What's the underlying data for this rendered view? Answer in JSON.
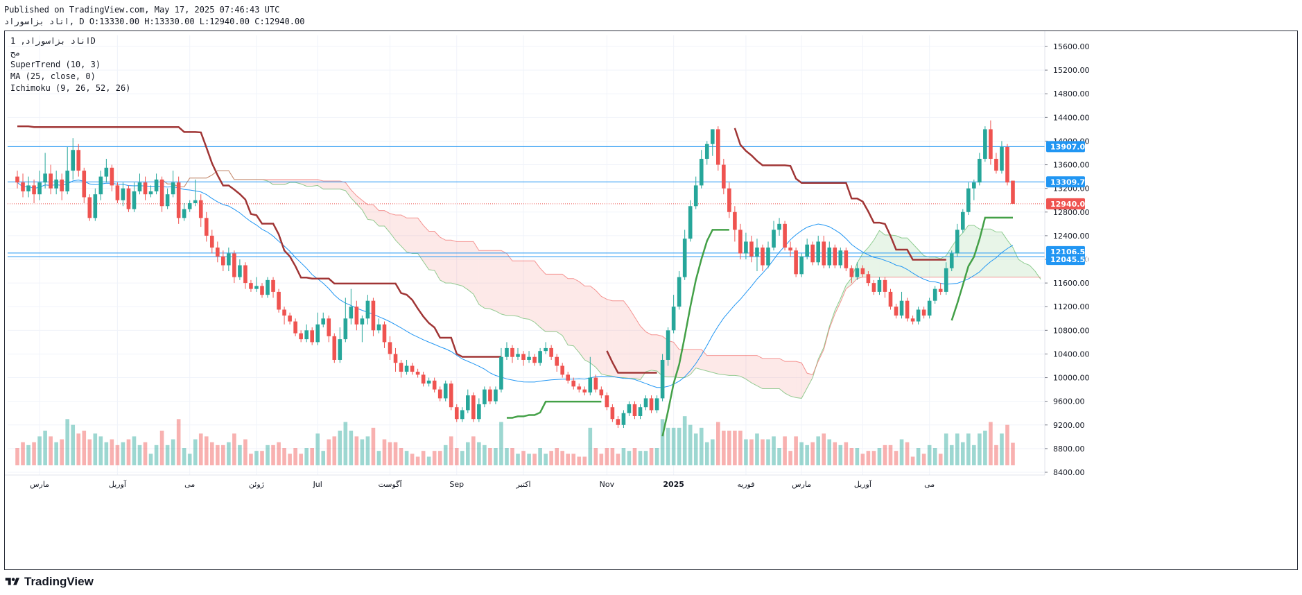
{
  "header": {
    "published": "Published on TradingView.com, May 17, 2025 07:46:43 UTC",
    "ohlc": "اناد بزاسوراد, D O:13330.00 H:13330.00 L:12940.00 C:12940.00"
  },
  "legend": {
    "symbol": "اناد بزاسوراد, 1D",
    "line2": "مح",
    "supertrend": "SuperTrend (10, 3)",
    "ma": "MA (25, close, 0)",
    "ichimoku": "Ichimoku (9, 26, 52, 26)"
  },
  "brand": {
    "name": "TradingView"
  },
  "colors": {
    "up": "#26a69a",
    "down": "#ef5350",
    "supertrend_up": "#43a047",
    "supertrend_down": "#a03535",
    "ma": "#2196f3",
    "hline": "#2196f3",
    "last_price": "#ef5350",
    "cloud_bear": "#ef5350",
    "cloud_bull": "#4caf50"
  },
  "chart_data": {
    "type": "candlestick",
    "y_axis": {
      "min": 8400,
      "max": 15600,
      "position": "right",
      "ticks": [
        "15600.00",
        "15200.00",
        "14800.00",
        "14400.00",
        "14000.00",
        "13600.00",
        "13200.00",
        "12800.00",
        "12400.00",
        "12000.00",
        "11600.00",
        "11200.00",
        "10800.00",
        "10400.00",
        "10000.00",
        "9600.00",
        "9200.00",
        "8800.00",
        "8400.00"
      ]
    },
    "x_axis": {
      "labels": [
        {
          "text": "مارس",
          "index": 4
        },
        {
          "text": "آوریل",
          "index": 18
        },
        {
          "text": "می",
          "index": 31
        },
        {
          "text": "ژوئن",
          "index": 43
        },
        {
          "text": "Jul",
          "index": 54
        },
        {
          "text": "آگوست",
          "index": 67
        },
        {
          "text": "Sep",
          "index": 79
        },
        {
          "text": "اکتبر",
          "index": 91
        },
        {
          "text": "Nov",
          "index": 106
        },
        {
          "text": "2025",
          "index": 118
        },
        {
          "text": "فوریه",
          "index": 131
        },
        {
          "text": "مارس",
          "index": 141
        },
        {
          "text": "آوریل",
          "index": 152
        },
        {
          "text": "می",
          "index": 164
        }
      ]
    },
    "candles": [
      [
        13400,
        13300,
        13500,
        13200
      ],
      [
        13300,
        13150,
        13450,
        13050
      ],
      [
        13150,
        13250,
        13400,
        13050
      ],
      [
        13250,
        13100,
        13350,
        12950
      ],
      [
        13100,
        13300,
        13500,
        13000
      ],
      [
        13300,
        13450,
        13800,
        13200
      ],
      [
        13450,
        13200,
        13600,
        13100
      ],
      [
        13200,
        13350,
        13500,
        13100
      ],
      [
        13350,
        13150,
        13450,
        13000
      ],
      [
        13150,
        13500,
        13900,
        13100
      ],
      [
        13500,
        13850,
        14050,
        13350
      ],
      [
        13850,
        13500,
        13950,
        13400
      ],
      [
        13500,
        13050,
        13550,
        12950
      ],
      [
        13050,
        12700,
        13100,
        12650
      ],
      [
        12700,
        13100,
        13200,
        12650
      ],
      [
        13100,
        13400,
        13500,
        13000
      ],
      [
        13400,
        13550,
        13700,
        13300
      ],
      [
        13550,
        13250,
        13600,
        13150
      ],
      [
        13250,
        13000,
        13300,
        12950
      ],
      [
        13000,
        13200,
        13300,
        12900
      ],
      [
        13200,
        12850,
        13250,
        12800
      ],
      [
        12850,
        13150,
        13300,
        12800
      ],
      [
        13150,
        13300,
        13450,
        13100
      ],
      [
        13300,
        13100,
        13400,
        13000
      ],
      [
        13100,
        13150,
        13250,
        13050
      ],
      [
        13150,
        13350,
        13450,
        13100
      ],
      [
        13350,
        12900,
        13400,
        12800
      ],
      [
        12900,
        13100,
        13200,
        12850
      ],
      [
        13100,
        13300,
        13500,
        13050
      ],
      [
        13300,
        12700,
        13400,
        12600
      ],
      [
        12700,
        12850,
        12950,
        12650
      ],
      [
        12850,
        12950,
        13000,
        12800
      ],
      [
        12950,
        13000,
        13350,
        12900
      ],
      [
        13000,
        12700,
        13100,
        12550
      ],
      [
        12700,
        12400,
        12800,
        12300
      ],
      [
        12400,
        12200,
        12500,
        12100
      ],
      [
        12200,
        12050,
        12300,
        11950
      ],
      [
        12050,
        11900,
        12150,
        11800
      ],
      [
        11900,
        12100,
        12200,
        11800
      ],
      [
        12100,
        11700,
        12150,
        11600
      ],
      [
        11700,
        11900,
        12000,
        11650
      ],
      [
        11900,
        11600,
        11950,
        11500
      ],
      [
        11600,
        11500,
        11650,
        11450
      ],
      [
        11500,
        11550,
        11700,
        11450
      ],
      [
        11550,
        11400,
        11600,
        11350
      ],
      [
        11400,
        11650,
        11700,
        11350
      ],
      [
        11650,
        11450,
        11700,
        11350
      ],
      [
        11450,
        11150,
        11500,
        11100
      ],
      [
        11150,
        11050,
        11200,
        10900
      ],
      [
        11050,
        10950,
        11100,
        10900
      ],
      [
        10950,
        10750,
        11000,
        10700
      ],
      [
        10750,
        10650,
        10800,
        10600
      ],
      [
        10650,
        10800,
        10900,
        10600
      ],
      [
        10800,
        10600,
        10850,
        10550
      ],
      [
        10600,
        10900,
        11100,
        10550
      ],
      [
        10900,
        11000,
        11100,
        10850
      ],
      [
        11000,
        10700,
        11050,
        10600
      ],
      [
        10700,
        10300,
        10750,
        10250
      ],
      [
        10300,
        10650,
        10850,
        10250
      ],
      [
        10650,
        11000,
        11350,
        10600
      ],
      [
        11000,
        11200,
        11500,
        10900
      ],
      [
        11200,
        10900,
        11300,
        10800
      ],
      [
        10900,
        11000,
        11050,
        10600
      ],
      [
        11000,
        11300,
        11400,
        10900
      ],
      [
        11300,
        10800,
        11350,
        10700
      ],
      [
        10800,
        10900,
        11000,
        10750
      ],
      [
        10900,
        10600,
        10950,
        10500
      ],
      [
        10600,
        10400,
        10700,
        10300
      ],
      [
        10400,
        10250,
        10500,
        10100
      ],
      [
        10250,
        10100,
        10300,
        10000
      ],
      [
        10100,
        10200,
        10300,
        10050
      ],
      [
        10200,
        10100,
        10250,
        10050
      ],
      [
        10100,
        10050,
        10150,
        10000
      ],
      [
        10050,
        9900,
        10100,
        9850
      ],
      [
        9900,
        9950,
        10000,
        9850
      ],
      [
        9950,
        9800,
        10000,
        9750
      ],
      [
        9800,
        9650,
        9850,
        9600
      ],
      [
        9650,
        9900,
        9950,
        9600
      ],
      [
        9900,
        9500,
        9950,
        9450
      ],
      [
        9500,
        9300,
        9550,
        9250
      ],
      [
        9300,
        9450,
        9500,
        9250
      ],
      [
        9450,
        9700,
        9800,
        9400
      ],
      [
        9700,
        9300,
        9750,
        9250
      ],
      [
        9300,
        9550,
        9650,
        9250
      ],
      [
        9550,
        9800,
        9850,
        9500
      ],
      [
        9800,
        9600,
        9850,
        9550
      ],
      [
        9600,
        9800,
        9850,
        9550
      ],
      [
        9800,
        10350,
        10500,
        9750
      ],
      [
        10350,
        10500,
        10600,
        10300
      ],
      [
        10500,
        10350,
        10550,
        10250
      ],
      [
        10350,
        10400,
        10500,
        10300
      ],
      [
        10400,
        10300,
        10450,
        10200
      ],
      [
        10300,
        10350,
        10450,
        10250
      ],
      [
        10350,
        10250,
        10400,
        10200
      ],
      [
        10250,
        10450,
        10500,
        10200
      ],
      [
        10450,
        10500,
        10600,
        10400
      ],
      [
        10500,
        10350,
        10550,
        10300
      ],
      [
        10350,
        10200,
        10400,
        10100
      ],
      [
        10200,
        10050,
        10250,
        10000
      ],
      [
        10050,
        9950,
        10100,
        9900
      ],
      [
        9950,
        9850,
        10000,
        9800
      ],
      [
        9850,
        9800,
        9900,
        9750
      ],
      [
        9800,
        9750,
        9850,
        9700
      ],
      [
        9750,
        10000,
        10350,
        9700
      ],
      [
        10000,
        9800,
        10050,
        9750
      ],
      [
        9800,
        9700,
        9850,
        9650
      ],
      [
        9700,
        9500,
        9750,
        9450
      ],
      [
        9500,
        9300,
        9550,
        9250
      ],
      [
        9300,
        9200,
        9350,
        9150
      ],
      [
        9200,
        9400,
        9450,
        9150
      ],
      [
        9400,
        9550,
        9600,
        9350
      ],
      [
        9550,
        9350,
        9600,
        9300
      ],
      [
        9350,
        9500,
        9550,
        9300
      ],
      [
        9500,
        9650,
        9700,
        9450
      ],
      [
        9650,
        9450,
        9700,
        9400
      ],
      [
        9450,
        9650,
        9700,
        9400
      ],
      [
        9650,
        10300,
        10400,
        9600
      ],
      [
        10300,
        10800,
        10850,
        10200
      ],
      [
        10800,
        11200,
        11400,
        10750
      ],
      [
        11200,
        11700,
        11800,
        11150
      ],
      [
        11700,
        12350,
        12500,
        11650
      ],
      [
        12350,
        12900,
        13000,
        12300
      ],
      [
        12900,
        13250,
        13400,
        12850
      ],
      [
        13250,
        13700,
        13850,
        13200
      ],
      [
        13700,
        13950,
        14000,
        13600
      ],
      [
        13950,
        14200,
        14200,
        13750
      ],
      [
        14200,
        13600,
        14250,
        13500
      ],
      [
        13600,
        13200,
        13700,
        13100
      ],
      [
        13200,
        12800,
        13300,
        12700
      ],
      [
        12800,
        12500,
        12900,
        12300
      ],
      [
        12500,
        12100,
        12600,
        12000
      ],
      [
        12100,
        12300,
        12450,
        12000
      ],
      [
        12300,
        12050,
        12400,
        11950
      ],
      [
        12050,
        12200,
        12350,
        11800
      ],
      [
        12200,
        11900,
        12250,
        11800
      ],
      [
        11900,
        12200,
        12300,
        11850
      ],
      [
        12200,
        12500,
        12650,
        12150
      ],
      [
        12500,
        12600,
        12700,
        12400
      ],
      [
        12600,
        12200,
        12650,
        12150
      ],
      [
        12200,
        12150,
        12300,
        12050
      ],
      [
        12150,
        11750,
        12200,
        11700
      ],
      [
        11750,
        12050,
        12100,
        11700
      ],
      [
        12050,
        12250,
        12350,
        12000
      ],
      [
        12250,
        11950,
        12300,
        11900
      ],
      [
        11950,
        12300,
        12400,
        11900
      ],
      [
        12300,
        11900,
        12400,
        11850
      ],
      [
        11900,
        12200,
        12300,
        11850
      ],
      [
        12200,
        11900,
        12250,
        11850
      ],
      [
        11900,
        12150,
        12200,
        11850
      ],
      [
        12150,
        11850,
        12200,
        11800
      ],
      [
        11850,
        11700,
        11900,
        11600
      ],
      [
        11700,
        11850,
        11950,
        11650
      ],
      [
        11850,
        11750,
        11900,
        11700
      ],
      [
        11750,
        11600,
        11800,
        11550
      ],
      [
        11600,
        11450,
        11650,
        11400
      ],
      [
        11450,
        11650,
        11700,
        11400
      ],
      [
        11650,
        11450,
        11700,
        11350
      ],
      [
        11450,
        11200,
        11500,
        11150
      ],
      [
        11200,
        11050,
        11250,
        11000
      ],
      [
        11050,
        11300,
        11450,
        11000
      ],
      [
        11300,
        11000,
        11350,
        10950
      ],
      [
        11000,
        10950,
        11050,
        10900
      ],
      [
        10950,
        11150,
        11200,
        10900
      ],
      [
        11150,
        11050,
        11200,
        11000
      ],
      [
        11050,
        11300,
        11350,
        11000
      ],
      [
        11300,
        11500,
        11550,
        11250
      ],
      [
        11500,
        11450,
        11600,
        11400
      ],
      [
        11450,
        11850,
        11950,
        11400
      ],
      [
        11850,
        12100,
        12150,
        11800
      ],
      [
        12100,
        12500,
        12600,
        12050
      ],
      [
        12500,
        12800,
        12850,
        12450
      ],
      [
        12800,
        13200,
        13300,
        12750
      ],
      [
        13200,
        13300,
        13350,
        13000
      ],
      [
        13300,
        13700,
        13800,
        13250
      ],
      [
        13700,
        14200,
        14250,
        13650
      ],
      [
        14200,
        13700,
        14350,
        13600
      ],
      [
        13700,
        13500,
        13800,
        13450
      ],
      [
        13500,
        13900,
        14000,
        13450
      ],
      [
        13900,
        13300,
        13950,
        13250
      ],
      [
        13330,
        12940,
        13330,
        12940
      ]
    ],
    "horizontal_lines": [
      13907.0,
      13309.78,
      12106.56,
      12045.5
    ],
    "last_price": 12940.0,
    "price_labels": [
      "13907.00",
      "13309.78",
      "12940.00",
      "12106.56",
      "12045.50"
    ]
  }
}
